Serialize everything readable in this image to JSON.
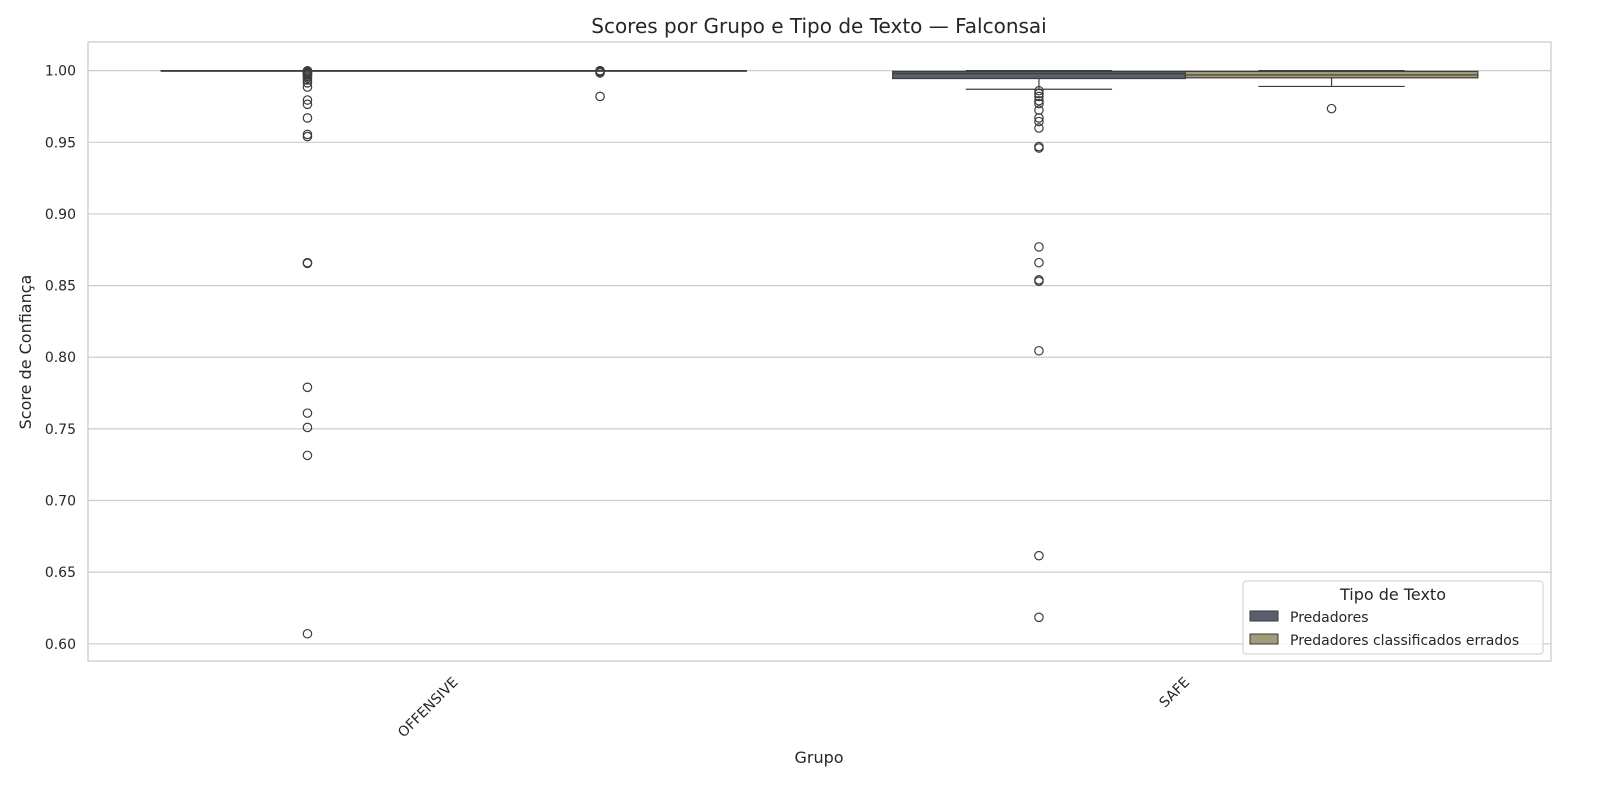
{
  "chart_data": {
    "type": "box",
    "title": "Scores por Grupo e Tipo de Texto — Falconsai",
    "xlabel": "Grupo",
    "ylabel": "Score de Confiança",
    "ylim": [
      0.588,
      1.02
    ],
    "yticks": [
      "0.60",
      "0.65",
      "0.70",
      "0.75",
      "0.80",
      "0.85",
      "0.90",
      "0.95",
      "1.00"
    ],
    "ytick_values": [
      0.6,
      0.65,
      0.7,
      0.75,
      0.8,
      0.85,
      0.9,
      0.95,
      1.0
    ],
    "grid": true,
    "categories": [
      "OFFENSIVE",
      "SAFE"
    ],
    "legend": {
      "title": "Tipo de Texto",
      "position": "lower-right"
    },
    "series": [
      {
        "name": "Predadores",
        "color": "#5a5e6e",
        "boxes": [
          {
            "category": "OFFENSIVE",
            "q1": 1.0,
            "median": 1.0,
            "q3": 1.0,
            "whisker_low": 1.0,
            "whisker_high": 1.0,
            "outliers": [
              0.9999,
              0.9997,
              0.9994,
              0.999,
              0.9985,
              0.998,
              0.9975,
              0.997,
              0.996,
              0.995,
              0.9935,
              0.9915,
              0.9885,
              0.9795,
              0.9765,
              0.967,
              0.9555,
              0.954,
              0.866,
              0.8655,
              0.779,
              0.761,
              0.751,
              0.7315,
              0.607
            ]
          },
          {
            "category": "SAFE",
            "q1": 0.9945,
            "median": 0.998,
            "q3": 0.9995,
            "whisker_low": 0.987,
            "whisker_high": 1.0,
            "outliers": [
              0.986,
              0.984,
              0.982,
              0.979,
              0.977,
              0.9725,
              0.967,
              0.9645,
              0.96,
              0.947,
              0.946,
              0.877,
              0.866,
              0.854,
              0.853,
              0.8045,
              0.6615,
              0.6185
            ]
          }
        ]
      },
      {
        "name": "Predadores classificados errados",
        "color": "#a29a78",
        "boxes": [
          {
            "category": "OFFENSIVE",
            "q1": 1.0,
            "median": 1.0,
            "q3": 1.0,
            "whisker_low": 1.0,
            "whisker_high": 1.0,
            "outliers": [
              1.0,
              0.9995,
              0.999,
              0.9985,
              0.982
            ]
          },
          {
            "category": "SAFE",
            "q1": 0.995,
            "median": 0.997,
            "q3": 0.9995,
            "whisker_low": 0.989,
            "whisker_high": 1.0,
            "outliers": [
              0.9735
            ]
          }
        ]
      }
    ]
  }
}
